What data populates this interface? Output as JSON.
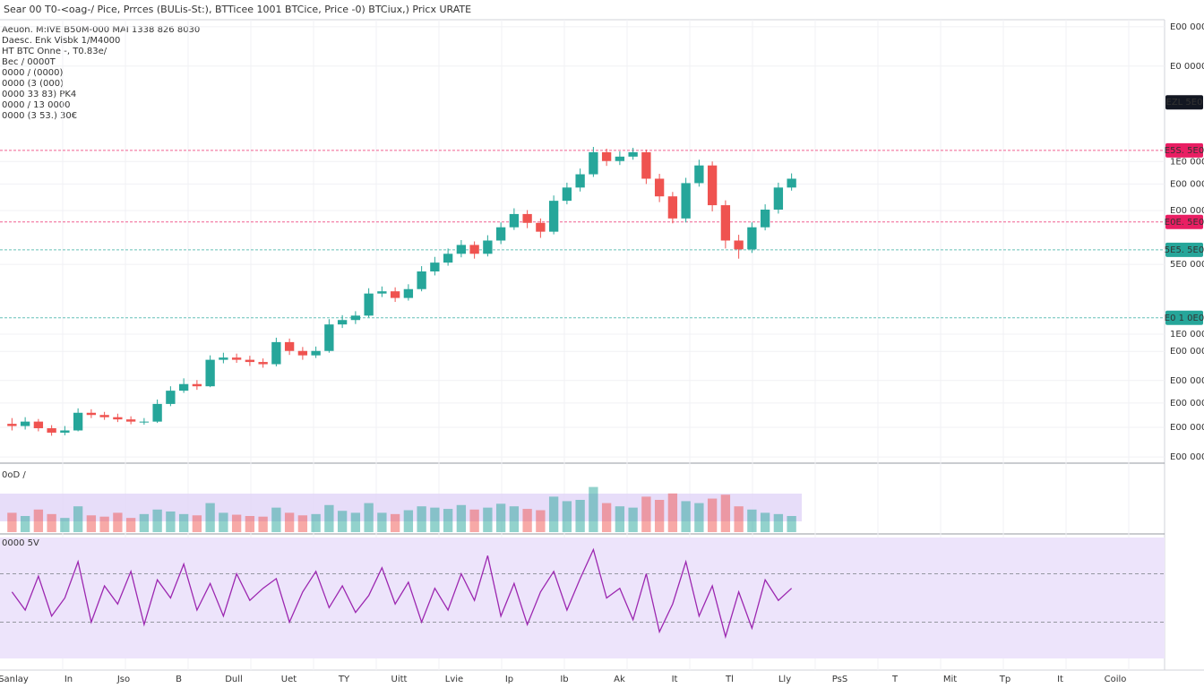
{
  "header": "Sear 00 T0-<oag-/ Pice, Prrces (BULis-St:), BTTicee 1001 BTCice, Price -0) BTCiux,) Pricx URATE",
  "legend": [
    {
      "text": "Aeuon. M:IVE B50M-000 MAI 1338 826 8030",
      "color": "#26a69a"
    },
    {
      "text": "Daesc. Enk Visbk 1/M4000",
      "color": "#333333"
    },
    {
      "text": "HT BTC Onne -, T0.83e/",
      "color": "#131722"
    },
    {
      "text": "Bec / 0000T",
      "color": "#26a69a"
    },
    {
      "text": "0000 / (0000)",
      "color": "#26a69a"
    },
    {
      "text": "0000 (3 (000)",
      "color": "#e53935"
    },
    {
      "text": "0000 33 83) PK4",
      "color": "#e53935"
    },
    {
      "text": "0000 / 13 0000",
      "color": "#26a69a"
    },
    {
      "text": "0000 (3 53.) 30€",
      "color": "#e53935"
    }
  ],
  "chart_data": {
    "type": "candlestick",
    "up_color": "#26a69a",
    "down_color": "#ef5350",
    "open": [
      8.5,
      8,
      9,
      7.5,
      6.5,
      7,
      11,
      10.5,
      10,
      9.5,
      9,
      9,
      13,
      16,
      17.5,
      17,
      23,
      23.5,
      23,
      22.5,
      22,
      27,
      25,
      24,
      25,
      31,
      32,
      33,
      38,
      38.5,
      37,
      39,
      43,
      45,
      47,
      49,
      47,
      50,
      53,
      56,
      54,
      52,
      59,
      62,
      65,
      70,
      68,
      69,
      70,
      64,
      60,
      55,
      63,
      67,
      58,
      50,
      48,
      53,
      57,
      62
    ],
    "high": [
      9.8,
      10,
      9.6,
      8.2,
      8,
      12,
      11.8,
      11.2,
      10.8,
      10.2,
      9.8,
      14,
      17,
      18.8,
      18.4,
      24,
      24.6,
      24.4,
      23.9,
      23.3,
      28,
      27.8,
      25.9,
      26,
      32.2,
      33.1,
      34,
      39.2,
      39.6,
      39.4,
      40.1,
      44.2,
      46.3,
      48.2,
      50.1,
      49.8,
      51.2,
      54.1,
      57.3,
      56.9,
      55,
      60.2,
      63.1,
      66.3,
      71.2,
      70.8,
      70.2,
      71,
      70.6,
      65.1,
      61,
      64.2,
      68.3,
      67.9,
      59.1,
      51.3,
      54.1,
      58.2,
      63.1,
      65.2
    ],
    "low": [
      7,
      7.2,
      6.8,
      5.8,
      5.9,
      6.8,
      9.8,
      9.4,
      8.9,
      8.4,
      8.3,
      8.7,
      12.5,
      15.5,
      16.2,
      16.8,
      22.2,
      22.3,
      21.6,
      21.2,
      21.5,
      24.1,
      23,
      23.4,
      24.6,
      30.2,
      31.1,
      32.6,
      37.2,
      36.1,
      36.4,
      38.5,
      42.1,
      44.3,
      46.2,
      45.9,
      46.4,
      49.2,
      52.4,
      52.8,
      50.6,
      51.4,
      58.2,
      61.1,
      64.4,
      66.9,
      67.1,
      68.3,
      62.8,
      58.7,
      53.9,
      54.1,
      62.2,
      56.6,
      48.2,
      45.9,
      47.2,
      52.3,
      56.1,
      61.3
    ],
    "close": [
      8,
      9,
      7.5,
      6.5,
      7,
      11,
      10.5,
      10,
      9.5,
      9,
      9,
      13,
      16,
      17.5,
      17,
      23,
      23.5,
      23,
      22.5,
      22,
      27,
      25,
      24,
      25,
      31,
      32,
      33,
      38,
      38.5,
      37,
      39,
      43,
      45,
      47,
      49,
      47,
      50,
      53,
      56,
      54,
      52,
      59,
      62,
      65,
      70,
      68,
      69,
      70,
      64,
      60,
      55,
      63,
      67,
      58,
      50,
      48,
      53,
      57,
      62,
      64
    ],
    "ylim": [
      0,
      100
    ],
    "yticks": [
      {
        "value": 98.4,
        "label": "E00 0000"
      },
      {
        "value": 89.5,
        "label": "E0 0000"
      },
      {
        "value": 67.9,
        "label": "1E0 0000"
      },
      {
        "value": 62.8,
        "label": "E00 0000"
      },
      {
        "value": 56.8,
        "label": "E00 0000"
      },
      {
        "value": 44.6,
        "label": "5E0 0000"
      },
      {
        "value": 28.8,
        "label": "1E0 0000"
      },
      {
        "value": 24.9,
        "label": "E00 0000"
      },
      {
        "value": 18.3,
        "label": "E00 0000"
      },
      {
        "value": 13.2,
        "label": "E00 0000"
      },
      {
        "value": 7.7,
        "label": "E00 0000"
      },
      {
        "value": 1,
        "label": "E00 0000"
      }
    ],
    "levels": [
      {
        "value": 81.3,
        "label": "EZL 5E0",
        "color": "#131722",
        "line": false
      },
      {
        "value": 70.4,
        "label": "E5S. 5E0",
        "color": "#e91e63",
        "line": true
      },
      {
        "value": 54.2,
        "label": "E0E. 5E0",
        "color": "#e91e63",
        "line": true
      },
      {
        "value": 47.9,
        "label": "5E5. 5E0",
        "color": "#26a69a",
        "line": true
      },
      {
        "value": 32.5,
        "label": "E0 1 0E0",
        "color": "#26a69a",
        "line": true
      }
    ],
    "volume": {
      "label": "0oD /",
      "ylim": [
        0,
        100
      ],
      "values": [
        30,
        25,
        35,
        28,
        22,
        40,
        26,
        24,
        30,
        22,
        28,
        35,
        32,
        28,
        26,
        45,
        30,
        27,
        25,
        24,
        38,
        30,
        26,
        28,
        42,
        33,
        30,
        45,
        30,
        28,
        34,
        40,
        38,
        36,
        42,
        35,
        38,
        44,
        40,
        36,
        34,
        55,
        48,
        50,
        70,
        45,
        40,
        38,
        55,
        50,
        60,
        48,
        45,
        52,
        58,
        40,
        35,
        30,
        28,
        25
      ]
    },
    "rsi": {
      "label": "0000 5V",
      "color": "#9c27b0",
      "ylim": [
        0,
        100
      ],
      "band": [
        30,
        70
      ],
      "values": [
        55,
        40,
        68,
        35,
        50,
        80,
        30,
        60,
        45,
        72,
        28,
        65,
        50,
        78,
        40,
        62,
        35,
        70,
        48,
        58,
        66,
        30,
        55,
        72,
        42,
        60,
        38,
        52,
        75,
        45,
        63,
        30,
        58,
        40,
        70,
        48,
        85,
        35,
        62,
        28,
        55,
        72,
        40,
        66,
        90,
        50,
        58,
        32,
        70,
        22,
        45,
        80,
        35,
        60,
        18,
        55,
        25,
        65,
        48,
        58
      ]
    },
    "x_labels": [
      "Sanlay",
      "In",
      "Jso",
      "B",
      "Dull",
      "Uet",
      "TY",
      "Uitt",
      "Lvie",
      "Ip",
      "Ib",
      "Ak",
      "It",
      "Tl",
      "Lly",
      "PsS",
      "T",
      "Mit",
      "Tp",
      "It",
      "Coilo"
    ]
  }
}
